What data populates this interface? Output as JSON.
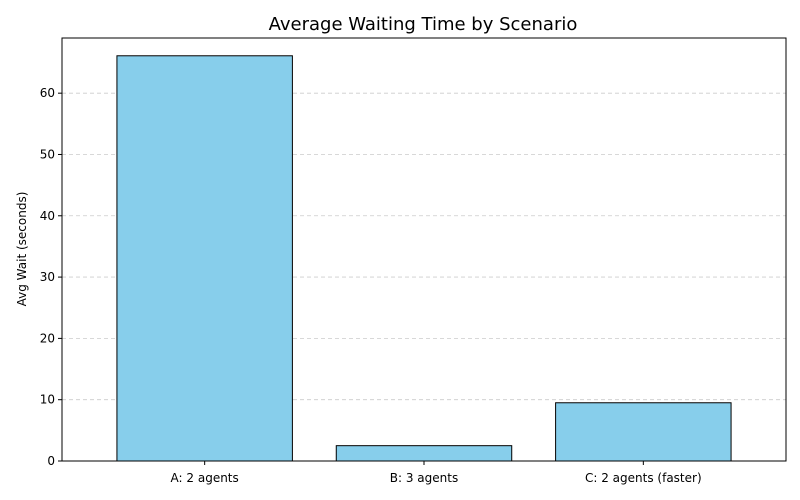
{
  "chart_data": {
    "type": "bar",
    "title": "Average Waiting Time by Scenario",
    "xlabel": "",
    "ylabel": "Avg Wait (seconds)",
    "categories": [
      "A: 2 agents",
      "B: 3 agents",
      "C: 2 agents (faster)"
    ],
    "values": [
      66.1,
      2.5,
      9.5
    ],
    "ylim": [
      0,
      69
    ],
    "yticks": [
      0,
      10,
      20,
      30,
      40,
      50,
      60
    ],
    "grid": {
      "y": true,
      "x": false,
      "style": "dashed"
    },
    "legend": "none",
    "colors": {
      "bar_fill": "#87ceeb",
      "bar_edge": "#000000",
      "grid": "#cccccc"
    }
  }
}
